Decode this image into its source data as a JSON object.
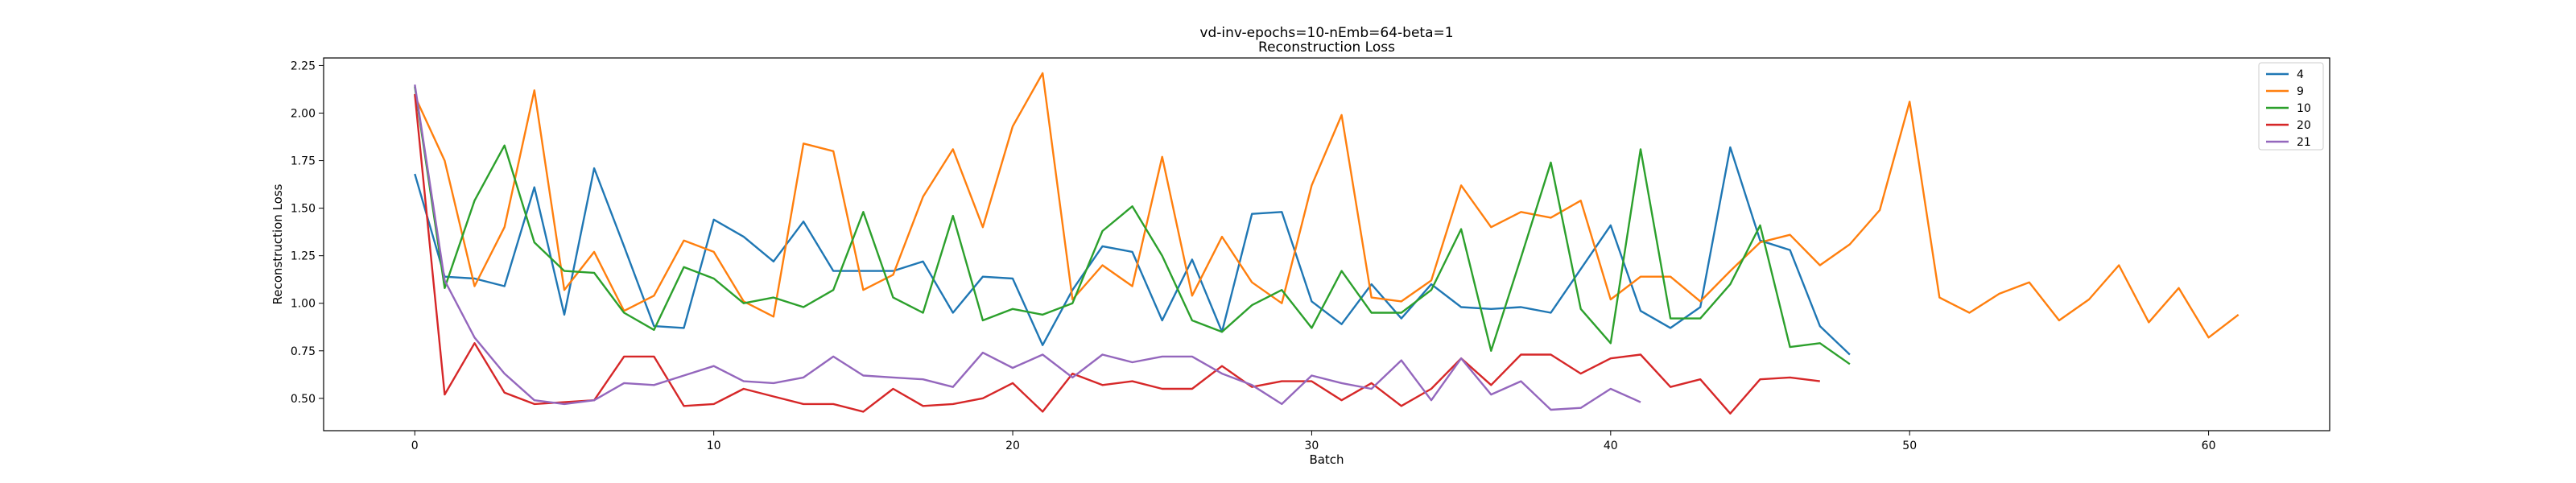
{
  "chart_data": {
    "type": "line",
    "title": "vd-inv-epochs=10-nEmb=64-beta=1",
    "subtitle": "Reconstruction Loss",
    "xlabel": "Batch",
    "ylabel": "Reconstruction Loss",
    "xlim": [
      -3.05,
      64.05
    ],
    "ylim": [
      0.33,
      2.29
    ],
    "xticks": [
      0,
      10,
      20,
      30,
      40,
      50,
      60
    ],
    "yticks": [
      0.5,
      0.75,
      1.0,
      1.25,
      1.5,
      1.75,
      2.0,
      2.25
    ],
    "xtick_labels": [
      "0",
      "10",
      "20",
      "30",
      "40",
      "50",
      "60"
    ],
    "ytick_labels": [
      "0.50",
      "0.75",
      "1.00",
      "1.25",
      "1.50",
      "1.75",
      "2.00",
      "2.25"
    ],
    "legend_position": "top-right",
    "grid": false,
    "series": [
      {
        "name": "4",
        "color": "#1f77b4",
        "values": [
          1.68,
          1.14,
          1.13,
          1.09,
          1.61,
          0.94,
          1.71,
          1.3,
          0.88,
          0.87,
          1.44,
          1.35,
          1.22,
          1.43,
          1.17,
          1.17,
          1.17,
          1.22,
          0.95,
          1.14,
          1.13,
          0.78,
          1.07,
          1.3,
          1.27,
          0.91,
          1.23,
          0.85,
          1.47,
          1.48,
          1.01,
          0.89,
          1.1,
          0.92,
          1.1,
          0.98,
          0.97,
          0.98,
          0.95,
          1.18,
          1.41,
          0.96,
          0.87,
          0.98,
          1.82,
          1.33,
          1.28,
          0.88,
          0.73
        ]
      },
      {
        "name": "9",
        "color": "#ff7f0e",
        "values": [
          2.09,
          1.75,
          1.09,
          1.4,
          2.12,
          1.07,
          1.27,
          0.96,
          1.04,
          1.33,
          1.27,
          1.01,
          0.93,
          1.84,
          1.8,
          1.07,
          1.15,
          1.56,
          1.81,
          1.4,
          1.93,
          2.21,
          1.02,
          1.2,
          1.09,
          1.77,
          1.04,
          1.35,
          1.11,
          1.0,
          1.62,
          1.99,
          1.03,
          1.01,
          1.12,
          1.62,
          1.4,
          1.48,
          1.45,
          1.54,
          1.02,
          1.14,
          1.14,
          1.01,
          1.17,
          1.32,
          1.36,
          1.2,
          1.31,
          1.49,
          2.06,
          1.03,
          0.95,
          1.05,
          1.11,
          0.91,
          1.02,
          1.2,
          0.9,
          1.08,
          0.82,
          0.94
        ]
      },
      {
        "name": "10",
        "color": "#2ca02c",
        "values": [
          2.14,
          1.08,
          1.54,
          1.83,
          1.32,
          1.17,
          1.16,
          0.95,
          0.86,
          1.19,
          1.13,
          1.0,
          1.03,
          0.98,
          1.07,
          1.48,
          1.03,
          0.95,
          1.46,
          0.91,
          0.97,
          0.94,
          1.0,
          1.38,
          1.51,
          1.25,
          0.91,
          0.85,
          0.99,
          1.07,
          0.87,
          1.17,
          0.95,
          0.95,
          1.07,
          1.39,
          0.75,
          1.24,
          1.74,
          0.97,
          0.79,
          1.81,
          0.92,
          0.92,
          1.1,
          1.41,
          0.77,
          0.79,
          0.68
        ]
      },
      {
        "name": "20",
        "color": "#d62728",
        "values": [
          2.1,
          0.52,
          0.79,
          0.53,
          0.47,
          0.48,
          0.49,
          0.72,
          0.72,
          0.46,
          0.47,
          0.55,
          0.51,
          0.47,
          0.47,
          0.43,
          0.55,
          0.46,
          0.47,
          0.5,
          0.58,
          0.43,
          0.63,
          0.57,
          0.59,
          0.55,
          0.55,
          0.67,
          0.56,
          0.59,
          0.59,
          0.49,
          0.58,
          0.46,
          0.55,
          0.71,
          0.57,
          0.73,
          0.73,
          0.63,
          0.71,
          0.73,
          0.56,
          0.6,
          0.42,
          0.6,
          0.61,
          0.59
        ]
      },
      {
        "name": "21",
        "color": "#9467bd",
        "values": [
          2.15,
          1.12,
          0.82,
          0.63,
          0.49,
          0.47,
          0.49,
          0.58,
          0.57,
          0.62,
          0.67,
          0.59,
          0.58,
          0.61,
          0.72,
          0.62,
          0.61,
          0.6,
          0.56,
          0.74,
          0.66,
          0.73,
          0.61,
          0.73,
          0.69,
          0.72,
          0.72,
          0.63,
          0.57,
          0.47,
          0.62,
          0.58,
          0.55,
          0.7,
          0.49,
          0.71,
          0.52,
          0.59,
          0.44,
          0.45,
          0.55,
          0.48
        ]
      }
    ]
  }
}
